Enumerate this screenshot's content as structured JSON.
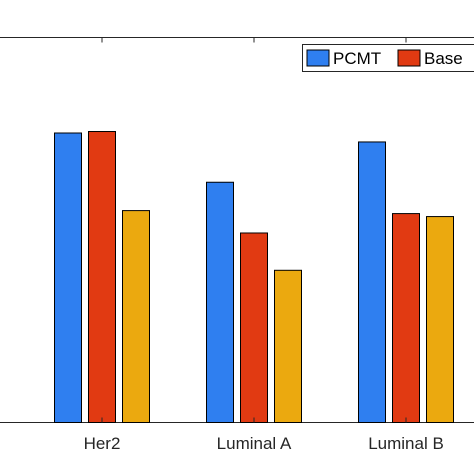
{
  "chart_data": {
    "type": "bar",
    "categories": [
      "Her2",
      "Luminal A",
      "Luminal B"
    ],
    "series": [
      {
        "name": "PCMT",
        "color": "#2f7ff0",
        "values": [
          0.97,
          0.805,
          0.94
        ]
      },
      {
        "name": "Base",
        "color": "#e13a12",
        "values": [
          0.975,
          0.635,
          0.7
        ]
      },
      {
        "name": "",
        "color": "#eba90f",
        "values": [
          0.71,
          0.51,
          0.69
        ]
      }
    ],
    "ylim": [
      0,
      1.29
    ],
    "legend": {
      "placement": "top-right",
      "entries": [
        "PCMT",
        "Base"
      ]
    },
    "grid": false
  }
}
